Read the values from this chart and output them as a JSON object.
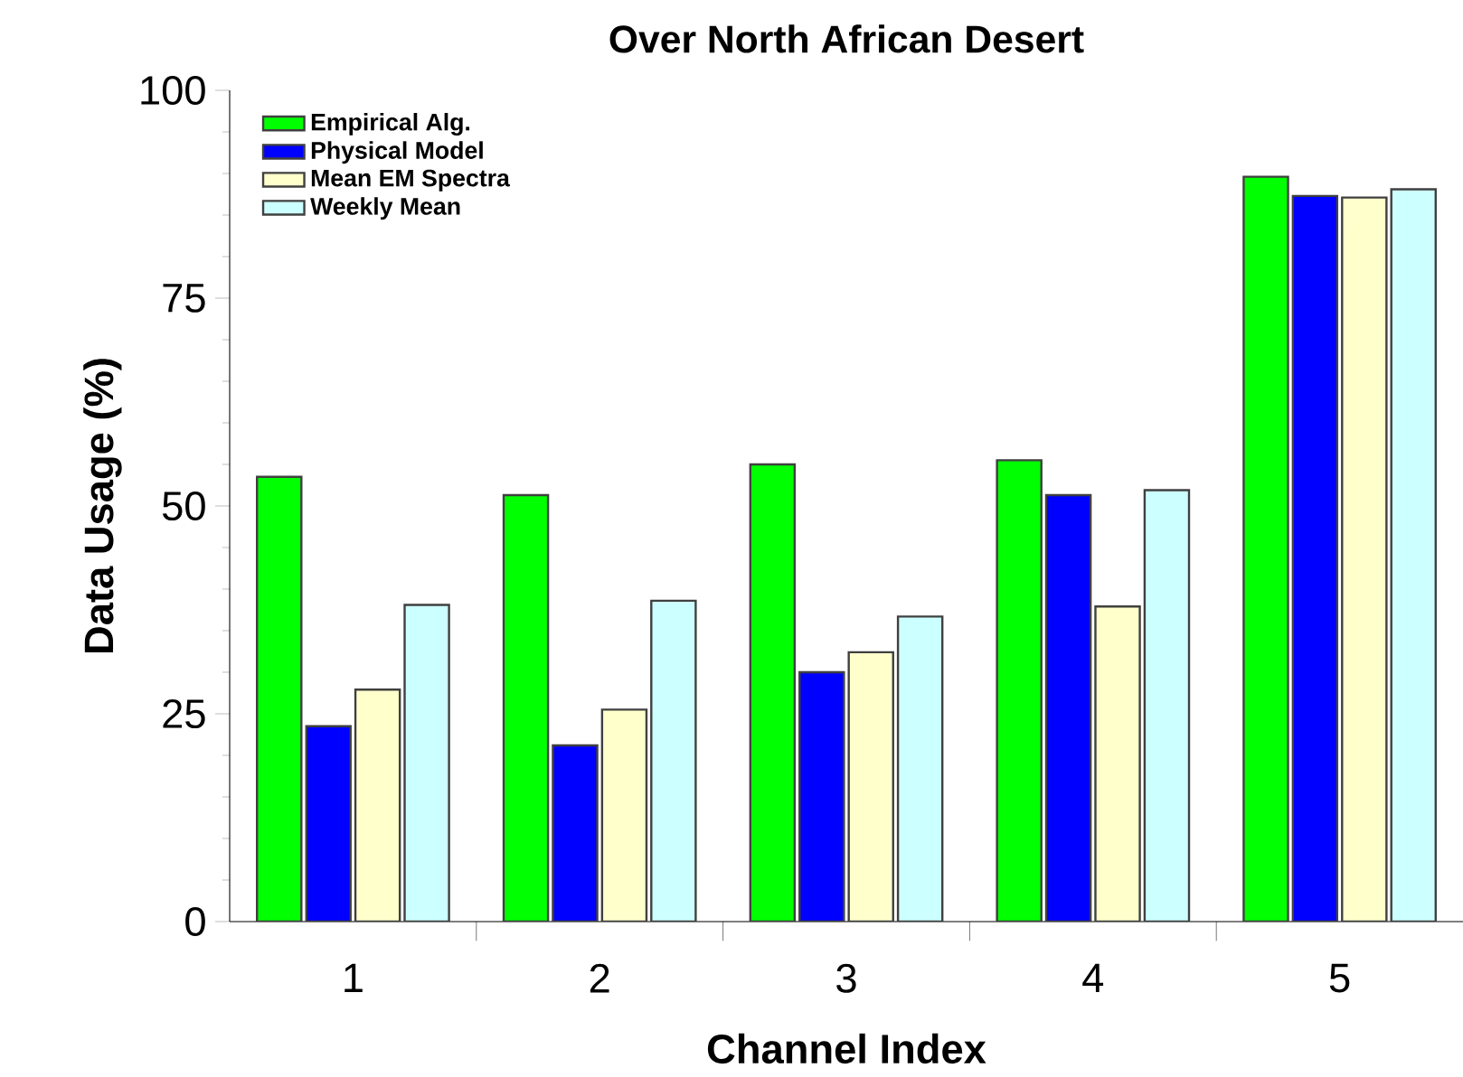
{
  "chart_data": {
    "type": "bar",
    "title": "Over North African Desert",
    "xlabel": "Channel Index",
    "ylabel": "Data Usage (%)",
    "categories": [
      "1",
      "2",
      "3",
      "4",
      "5"
    ],
    "series": [
      {
        "name": "Empirical Alg.",
        "color": "#00ff00",
        "values": [
          53.5,
          51.3,
          55.0,
          55.5,
          89.6
        ]
      },
      {
        "name": "Physical Model",
        "color": "#0000ff",
        "values": [
          23.5,
          21.2,
          30.0,
          51.3,
          87.3
        ]
      },
      {
        "name": "Mean EM Spectra",
        "color": "#ffffcc",
        "values": [
          27.9,
          25.5,
          32.4,
          37.9,
          87.1
        ]
      },
      {
        "name": "Weekly Mean",
        "color": "#ccffff",
        "values": [
          38.1,
          38.6,
          36.7,
          51.9,
          88.1
        ]
      }
    ],
    "ylim": [
      0,
      100
    ],
    "yticks": [
      0,
      25,
      50,
      75,
      100
    ],
    "grid": false,
    "legend": "top left"
  }
}
